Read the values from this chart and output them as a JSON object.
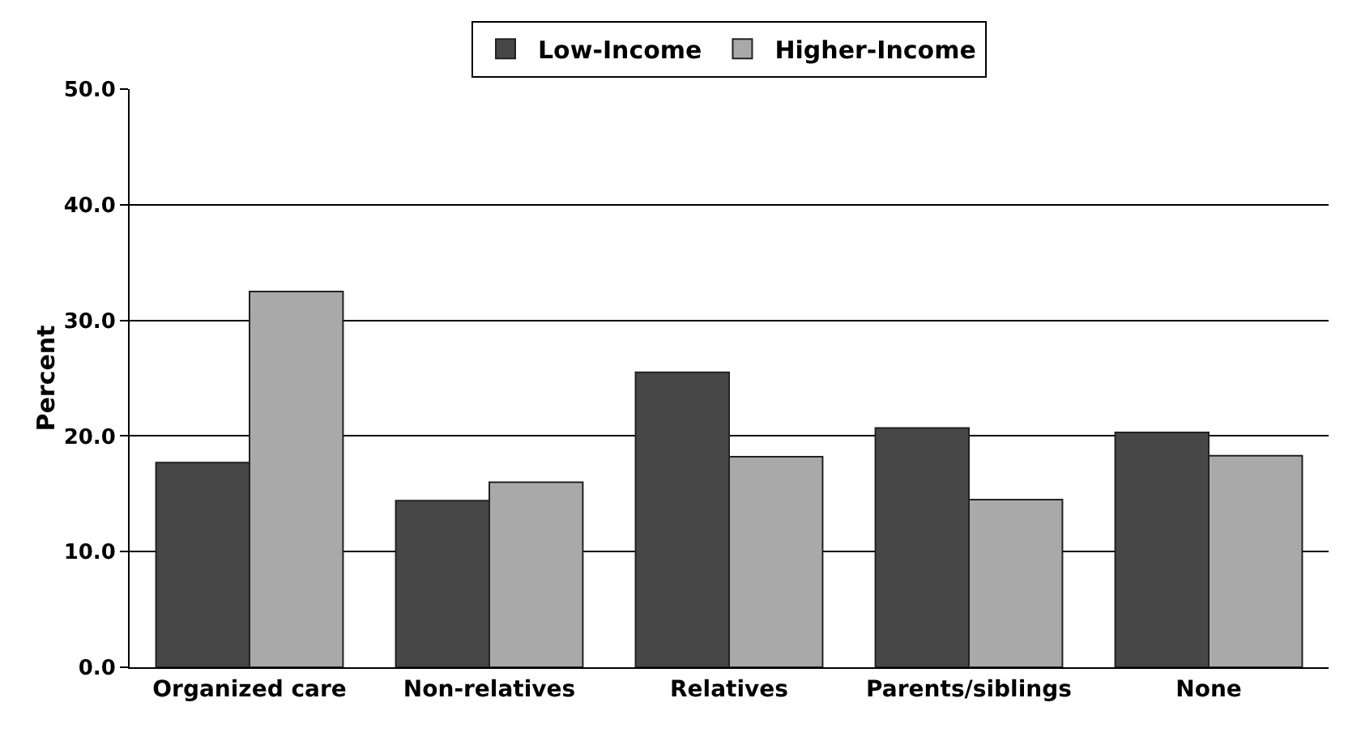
{
  "chart_data": {
    "type": "bar",
    "ylabel": "Percent",
    "categories": [
      "Organized care",
      "Non-relatives",
      "Relatives",
      "Parents/siblings",
      "None"
    ],
    "series": [
      {
        "name": "Low-Income",
        "color": "#474747",
        "values": [
          17.7,
          14.4,
          25.5,
          20.7,
          20.3
        ]
      },
      {
        "name": "Higher-Income",
        "color": "#a9a9a9",
        "values": [
          32.5,
          16.0,
          18.2,
          14.5,
          18.3
        ]
      }
    ],
    "ylim": [
      0,
      50
    ],
    "yticks": [
      {
        "value": 0,
        "label": "0.0"
      },
      {
        "value": 10,
        "label": "10.0"
      },
      {
        "value": 20,
        "label": "20.0"
      },
      {
        "value": 30,
        "label": "30.0"
      },
      {
        "value": 40,
        "label": "40.0"
      },
      {
        "value": 50,
        "label": "50.0"
      }
    ],
    "grid": "y",
    "legend": "top"
  }
}
